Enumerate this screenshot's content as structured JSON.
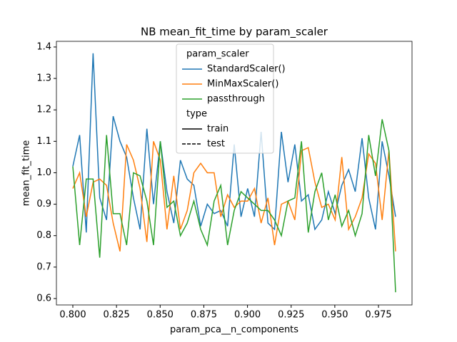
{
  "chart_data": {
    "type": "line",
    "title": "NB mean_fit_time by param_scaler",
    "x_label": "param_pca__n_components",
    "y_label": "mean_fit_time",
    "x": [
      0.8,
      0.8039,
      0.8077,
      0.8116,
      0.8154,
      0.8193,
      0.8231,
      0.827,
      0.8308,
      0.8347,
      0.8385,
      0.8424,
      0.8462,
      0.8501,
      0.8539,
      0.8578,
      0.8616,
      0.8655,
      0.8693,
      0.8732,
      0.877,
      0.8809,
      0.8847,
      0.8886,
      0.8924,
      0.8963,
      0.9001,
      0.904,
      0.9078,
      0.9117,
      0.9155,
      0.9194,
      0.9232,
      0.9271,
      0.9309,
      0.9348,
      0.9386,
      0.9425,
      0.9463,
      0.9502,
      0.954,
      0.9579,
      0.9617,
      0.9656,
      0.9694,
      0.9733,
      0.9771,
      0.981,
      0.9848
    ],
    "series": [
      {
        "name": "StandardScaler()",
        "color": "#1f77b4",
        "values": [
          1.02,
          1.12,
          0.81,
          1.38,
          0.92,
          0.85,
          1.18,
          1.1,
          1.05,
          0.92,
          0.82,
          1.14,
          0.9,
          1.1,
          0.94,
          0.84,
          1.04,
          0.98,
          0.96,
          0.83,
          0.9,
          0.87,
          0.88,
          0.83,
          1.09,
          0.86,
          0.95,
          0.86,
          1.13,
          0.84,
          0.82,
          1.13,
          0.97,
          1.09,
          0.91,
          0.93,
          0.82,
          0.85,
          0.94,
          0.87,
          0.96,
          1.01,
          0.94,
          1.11,
          0.92,
          0.82,
          1.1,
          0.99,
          0.86
        ]
      },
      {
        "name": "MinMaxScaler()",
        "color": "#ff7f0e",
        "values": [
          0.95,
          1.0,
          0.86,
          0.97,
          0.98,
          0.96,
          0.84,
          0.75,
          1.09,
          1.04,
          0.95,
          0.78,
          1.1,
          1.04,
          0.82,
          0.99,
          0.82,
          0.88,
          1.0,
          1.03,
          1.0,
          1.0,
          0.86,
          0.93,
          0.89,
          0.91,
          0.91,
          0.95,
          0.84,
          0.92,
          0.77,
          0.9,
          0.91,
          0.85,
          1.07,
          1.08,
          0.97,
          0.89,
          0.9,
          0.85,
          1.05,
          0.82,
          0.86,
          0.92,
          1.06,
          1.03,
          0.85,
          1.07,
          0.75
        ]
      },
      {
        "name": "passthrough",
        "color": "#2ca02c",
        "values": [
          1.02,
          0.77,
          0.98,
          0.98,
          0.73,
          1.12,
          0.87,
          0.87,
          0.77,
          1.0,
          0.99,
          0.91,
          0.77,
          1.1,
          0.89,
          0.91,
          0.8,
          0.84,
          0.91,
          0.82,
          0.77,
          0.91,
          0.96,
          0.77,
          0.88,
          0.94,
          0.92,
          0.9,
          0.88,
          0.88,
          0.85,
          0.8,
          0.91,
          0.92,
          1.1,
          0.81,
          0.94,
          1.0,
          0.85,
          0.93,
          0.83,
          0.88,
          0.8,
          0.87,
          1.12,
          0.99,
          1.17,
          1.07,
          0.62
        ]
      }
    ],
    "legend": {
      "title": "param_scaler",
      "style_title": "type",
      "styles": [
        {
          "name": "train",
          "dash": "solid"
        },
        {
          "name": "test",
          "dash": "dashed"
        }
      ],
      "position": "upper center"
    },
    "xlim": [
      0.7906,
      0.9942
    ],
    "ylim": [
      0.5796,
      1.418
    ],
    "xticks": [
      {
        "value": 0.8,
        "label": "0.800"
      },
      {
        "value": 0.825,
        "label": "0.825"
      },
      {
        "value": 0.85,
        "label": "0.850"
      },
      {
        "value": 0.875,
        "label": "0.875"
      },
      {
        "value": 0.9,
        "label": "0.900"
      },
      {
        "value": 0.925,
        "label": "0.925"
      },
      {
        "value": 0.95,
        "label": "0.950"
      },
      {
        "value": 0.975,
        "label": "0.975"
      }
    ],
    "yticks": [
      0.6,
      0.7,
      0.8,
      0.9,
      {
        "value": 1.0,
        "label": "1.0"
      },
      1.1,
      1.2,
      1.3,
      1.4
    ],
    "grid": false
  }
}
